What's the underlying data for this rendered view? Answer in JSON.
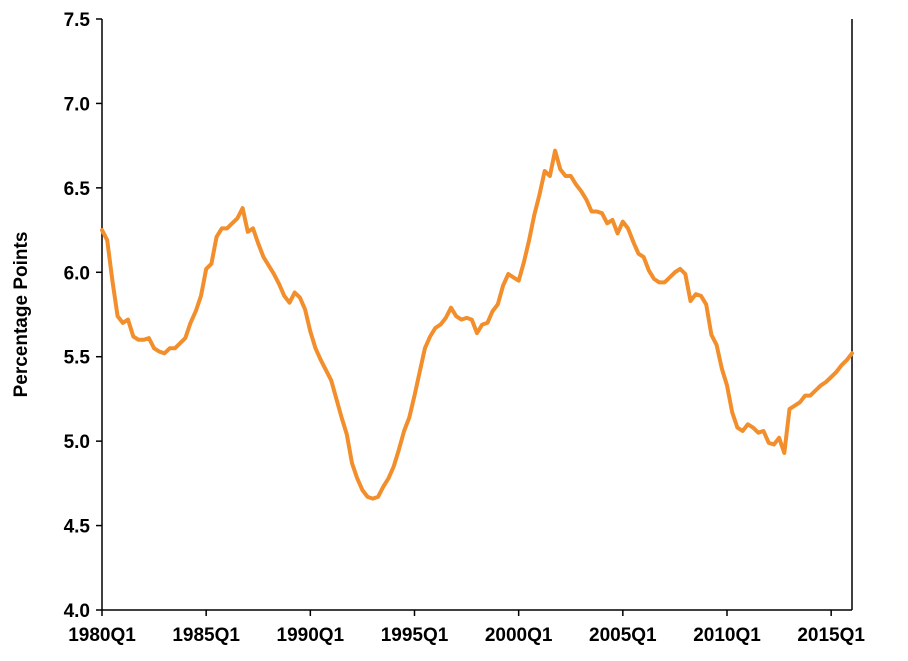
{
  "chart_data": {
    "type": "line",
    "title": "",
    "xlabel": "",
    "ylabel": "Percentage Points",
    "ylim": [
      4.0,
      7.5
    ],
    "yticks": [
      "4.0",
      "4.5",
      "5.0",
      "5.5",
      "6.0",
      "6.5",
      "7.0",
      "7.5"
    ],
    "xticks": [
      "1980Q1",
      "1985Q1",
      "1990Q1",
      "1995Q1",
      "2000Q1",
      "2005Q1",
      "2010Q1",
      "2015Q1"
    ],
    "x_range": [
      "1980Q1",
      "2016Q1"
    ],
    "grid": false,
    "line_color": "#F28E2B",
    "series": [
      {
        "x": [
          "1980Q1",
          "1980Q2",
          "1980Q3",
          "1980Q4",
          "1981Q1",
          "1981Q2",
          "1981Q3",
          "1981Q4",
          "1982Q1",
          "1982Q2",
          "1982Q3",
          "1982Q4",
          "1983Q1",
          "1983Q2",
          "1983Q3",
          "1983Q4",
          "1984Q1",
          "1984Q2",
          "1984Q3",
          "1984Q4",
          "1985Q1",
          "1985Q2",
          "1985Q3",
          "1985Q4",
          "1986Q1",
          "1986Q2",
          "1986Q3",
          "1986Q4",
          "1987Q1",
          "1987Q2",
          "1987Q3",
          "1987Q4",
          "1988Q1",
          "1988Q2",
          "1988Q3",
          "1988Q4",
          "1989Q1",
          "1989Q2",
          "1989Q3",
          "1989Q4",
          "1990Q1",
          "1990Q2",
          "1990Q3",
          "1990Q4",
          "1991Q1",
          "1991Q2",
          "1991Q3",
          "1991Q4",
          "1992Q1",
          "1992Q2",
          "1992Q3",
          "1992Q4",
          "1993Q1",
          "1993Q2",
          "1993Q3",
          "1993Q4",
          "1994Q1",
          "1994Q2",
          "1994Q3",
          "1994Q4",
          "1995Q1",
          "1995Q2",
          "1995Q3",
          "1995Q4",
          "1996Q1",
          "1996Q2",
          "1996Q3",
          "1996Q4",
          "1997Q1",
          "1997Q2",
          "1997Q3",
          "1997Q4",
          "1998Q1",
          "1998Q2",
          "1998Q3",
          "1998Q4",
          "1999Q1",
          "1999Q2",
          "1999Q3",
          "1999Q4",
          "2000Q1",
          "2000Q2",
          "2000Q3",
          "2000Q4",
          "2001Q1",
          "2001Q2",
          "2001Q3",
          "2001Q4",
          "2002Q1",
          "2002Q2",
          "2002Q3",
          "2002Q4",
          "2003Q1",
          "2003Q2",
          "2003Q3",
          "2003Q4",
          "2004Q1",
          "2004Q2",
          "2004Q3",
          "2004Q4",
          "2005Q1",
          "2005Q2",
          "2005Q3",
          "2005Q4",
          "2006Q1",
          "2006Q2",
          "2006Q3",
          "2006Q4",
          "2007Q1",
          "2007Q2",
          "2007Q3",
          "2007Q4",
          "2008Q1",
          "2008Q2",
          "2008Q3",
          "2008Q4",
          "2009Q1",
          "2009Q2",
          "2009Q3",
          "2009Q4",
          "2010Q1",
          "2010Q2",
          "2010Q3",
          "2010Q4",
          "2011Q1",
          "2011Q2",
          "2011Q3",
          "2011Q4",
          "2012Q1",
          "2012Q2",
          "2012Q3",
          "2012Q4",
          "2013Q1",
          "2013Q2",
          "2013Q3",
          "2013Q4",
          "2014Q1",
          "2014Q2",
          "2014Q3",
          "2014Q4",
          "2015Q1",
          "2015Q2",
          "2015Q3",
          "2015Q4",
          "2016Q1"
        ],
        "values": [
          6.25,
          6.19,
          5.95,
          5.74,
          5.7,
          5.72,
          5.62,
          5.6,
          5.6,
          5.61,
          5.55,
          5.53,
          5.52,
          5.55,
          5.55,
          5.58,
          5.61,
          5.7,
          5.77,
          5.86,
          6.02,
          6.05,
          6.21,
          6.26,
          6.26,
          6.29,
          6.32,
          6.38,
          6.24,
          6.26,
          6.17,
          6.09,
          6.04,
          5.99,
          5.93,
          5.86,
          5.82,
          5.88,
          5.85,
          5.78,
          5.65,
          5.55,
          5.48,
          5.42,
          5.36,
          5.25,
          5.14,
          5.04,
          4.87,
          4.78,
          4.71,
          4.67,
          4.66,
          4.67,
          4.73,
          4.78,
          4.85,
          4.95,
          5.06,
          5.14,
          5.27,
          5.41,
          5.55,
          5.62,
          5.67,
          5.69,
          5.73,
          5.79,
          5.74,
          5.72,
          5.73,
          5.72,
          5.64,
          5.69,
          5.7,
          5.77,
          5.81,
          5.92,
          5.99,
          5.97,
          5.95,
          6.06,
          6.19,
          6.34,
          6.46,
          6.6,
          6.57,
          6.72,
          6.61,
          6.57,
          6.57,
          6.52,
          6.48,
          6.43,
          6.36,
          6.36,
          6.35,
          6.29,
          6.31,
          6.23,
          6.3,
          6.26,
          6.18,
          6.11,
          6.09,
          6.01,
          5.96,
          5.94,
          5.94,
          5.97,
          6.0,
          6.02,
          5.99,
          5.83,
          5.87,
          5.86,
          5.81,
          5.63,
          5.57,
          5.43,
          5.33,
          5.17,
          5.08,
          5.06,
          5.1,
          5.08,
          5.05,
          5.06,
          4.99,
          4.98,
          5.02,
          4.93,
          5.19,
          5.21,
          5.23,
          5.27,
          5.27,
          5.3,
          5.33,
          5.35,
          5.38,
          5.41,
          5.45,
          5.48,
          5.52
        ]
      }
    ]
  }
}
